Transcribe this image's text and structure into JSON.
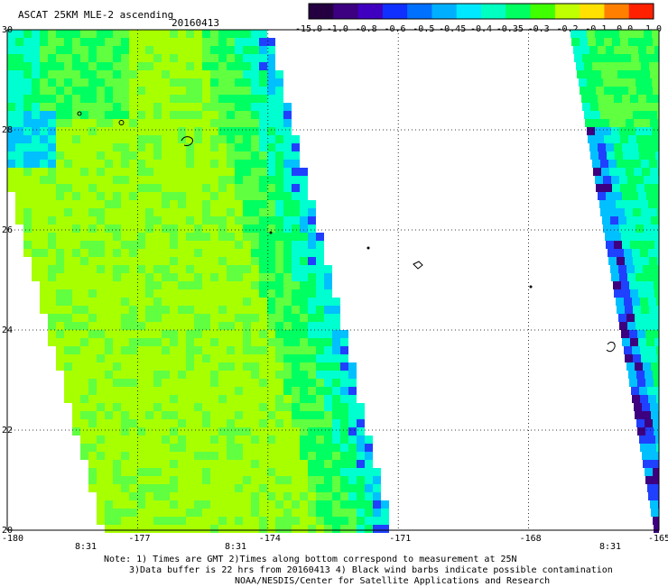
{
  "header": {
    "title": "ASCAT 25KM MLE-2 ascending",
    "date": "20160413"
  },
  "colorbar": {
    "tick_labels": [
      "-15.0",
      "-1.0",
      "-0.8",
      "-0.6",
      "-0.5",
      "-0.45",
      "-0.4",
      "-0.35",
      "-0.3",
      "-0.2",
      "-0.1",
      "0.0",
      "1.0"
    ],
    "colors": [
      "#240040",
      "#3c0080",
      "#4000c0",
      "#1030ff",
      "#0070ff",
      "#00b0ff",
      "#00e8ff",
      "#00ffc0",
      "#00ff60",
      "#40ff00",
      "#c0ff00",
      "#ffe000",
      "#ff8000",
      "#ff2000"
    ]
  },
  "map": {
    "x_ticks": [
      "-180",
      "-177",
      "-174",
      "-171",
      "-168",
      "-165"
    ],
    "y_ticks": [
      "30",
      "28",
      "26",
      "24",
      "22",
      "20"
    ],
    "colors": {
      "land_green": "#a8ff00",
      "mid_green": "#60ff40",
      "swath_green": "#00ff60",
      "cyan": "#00ffd0",
      "light_blue": "#00c0ff",
      "blue": "#2040ff",
      "deep_blue": "#3000e0",
      "purple": "#3c0080"
    }
  },
  "pass_times": [
    "8:31",
    "8:31",
    "8:31"
  ],
  "footer": {
    "line1": "Note: 1) Times are GMT 2)Times along bottom correspond to measurement at 25N",
    "line2": "3)Data buffer is 22 hrs from 20160413 4) Black wind barbs indicate possible contamination",
    "line3": "NOAA/NESDIS/Center for Satellite Applications and Research"
  }
}
